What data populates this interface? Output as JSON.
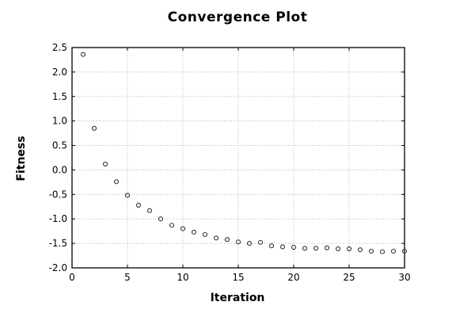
{
  "figure": {
    "background": "#ffffff",
    "text_color": "#000000"
  },
  "chart_data": {
    "type": "scatter",
    "title": "Convergence Plot",
    "xlabel": "Iteration",
    "ylabel": "Fitness",
    "xlim": [
      0,
      30
    ],
    "ylim": [
      -2.0,
      2.5
    ],
    "xticks": [
      0,
      5,
      10,
      15,
      20,
      25,
      30
    ],
    "xtick_labels": [
      "0",
      "5",
      "10",
      "15",
      "20",
      "25",
      "30"
    ],
    "yticks": [
      -2.0,
      -1.5,
      -1.0,
      -0.5,
      0.0,
      0.5,
      1.0,
      1.5,
      2.0,
      2.5
    ],
    "ytick_labels": [
      "-2.0",
      "-1.5",
      "-1.0",
      "-0.5",
      "0.0",
      "0.5",
      "1.0",
      "1.5",
      "2.0",
      "2.5"
    ],
    "grid": true,
    "grid_style": "dotted",
    "grid_color": "#b8b8b8",
    "border_color": "#000000",
    "tick_color": "#000000",
    "legend": "none",
    "marker": {
      "shape": "open-circle",
      "color": "#303030",
      "radius": 2.5
    },
    "x": [
      1,
      2,
      3,
      4,
      5,
      6,
      7,
      8,
      9,
      10,
      11,
      12,
      13,
      14,
      15,
      16,
      17,
      18,
      19,
      20,
      21,
      22,
      23,
      24,
      25,
      26,
      27,
      28,
      29,
      30
    ],
    "y": [
      2.36,
      0.85,
      0.12,
      -0.24,
      -0.52,
      -0.72,
      -0.83,
      -1.0,
      -1.13,
      -1.2,
      -1.27,
      -1.32,
      -1.39,
      -1.42,
      -1.47,
      -1.5,
      -1.48,
      -1.55,
      -1.57,
      -1.58,
      -1.6,
      -1.6,
      -1.59,
      -1.61,
      -1.61,
      -1.63,
      -1.66,
      -1.67,
      -1.66,
      -1.66
    ]
  }
}
